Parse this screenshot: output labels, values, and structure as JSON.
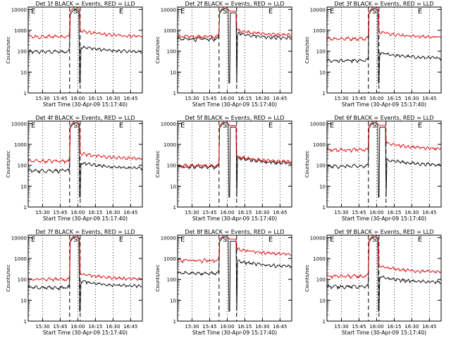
{
  "figure": {
    "ylabel": "Counts/sec",
    "xlabel": "Start Time (30-Apr-09 15:17:40)",
    "title_suffix": " BLACK = Events, RED = LLD",
    "yticks": [
      "1",
      "10",
      "100",
      "1000",
      "10000"
    ],
    "xticks": [
      "15:30",
      "15:45",
      "16:00",
      "16:15",
      "16:30",
      "16:45"
    ],
    "markers": [
      "E",
      "S",
      "E"
    ],
    "colors": {
      "events": "#000000",
      "lld": "#e00000"
    }
  },
  "chart_data": [
    {
      "type": "line",
      "title": "Det 1f BLACK = Events, RED = LLD",
      "detector": "Det 1f",
      "x_range": [
        "15:17:40",
        "16:55"
      ],
      "ylim": [
        1,
        13000
      ],
      "yscale": "log",
      "series": [
        {
          "name": "BLACK = Events",
          "baseline_pre": 95,
          "baseline_post": 90,
          "peak": 10000
        },
        {
          "name": "RED = LLD",
          "baseline_pre": 500,
          "baseline_post": 500,
          "peak": 13000
        }
      ],
      "vlines": [
        "15:53",
        "16:02"
      ],
      "dotted_gridlines": [
        "15:30",
        "15:45",
        "16:00",
        "16:15",
        "16:30",
        "16:45"
      ]
    },
    {
      "type": "line",
      "title": "Det 2f BLACK = Events, RED = LLD",
      "detector": "Det 2f",
      "x_range": [
        "15:17:40",
        "16:55"
      ],
      "ylim": [
        1,
        13000
      ],
      "yscale": "log",
      "series": [
        {
          "name": "BLACK = Events",
          "baseline_pre": 380,
          "baseline_post": 400,
          "peak": 11000
        },
        {
          "name": "RED = LLD",
          "baseline_pre": 500,
          "baseline_post": 550,
          "peak": 13000
        }
      ],
      "vlines": [
        "15:53",
        "16:08"
      ],
      "dotted_gridlines": [
        "15:30",
        "15:45",
        "16:00",
        "16:15",
        "16:30",
        "16:45"
      ]
    },
    {
      "type": "line",
      "title": "Det 3f BLACK = Events, RED = LLD",
      "detector": "Det 3f",
      "x_range": [
        "15:17:40",
        "16:55"
      ],
      "ylim": [
        1,
        13000
      ],
      "yscale": "log",
      "series": [
        {
          "name": "BLACK = Events",
          "baseline_pre": 35,
          "baseline_post": 45,
          "peak": 11000
        },
        {
          "name": "RED = LLD",
          "baseline_pre": 400,
          "baseline_post": 450,
          "peak": 13000
        }
      ],
      "vlines": [
        "15:53",
        "16:02"
      ],
      "dotted_gridlines": [
        "15:30",
        "15:45",
        "16:00",
        "16:15",
        "16:30",
        "16:45"
      ]
    },
    {
      "type": "line",
      "title": "Det 4f BLACK = Events, RED = LLD",
      "detector": "Det 4f",
      "x_range": [
        "15:17:40",
        "16:55"
      ],
      "ylim": [
        1,
        13000
      ],
      "yscale": "log",
      "series": [
        {
          "name": "BLACK = Events",
          "baseline_pre": 55,
          "baseline_post": 70,
          "peak": 11000
        },
        {
          "name": "RED = LLD",
          "baseline_pre": 160,
          "baseline_post": 200,
          "peak": 13000
        }
      ],
      "vlines": [
        "15:53",
        "16:02"
      ],
      "dotted_gridlines": [
        "15:30",
        "15:45",
        "16:00",
        "16:15",
        "16:30",
        "16:45"
      ]
    },
    {
      "type": "line",
      "title": "Det 5f BLACK = Events, RED = LLD",
      "detector": "Det 5f",
      "x_range": [
        "15:17:40",
        "16:55"
      ],
      "ylim": [
        1,
        13000
      ],
      "yscale": "log",
      "series": [
        {
          "name": "BLACK = Events",
          "baseline_pre": 85,
          "baseline_post": 120,
          "peak": 11000
        },
        {
          "name": "RED = LLD",
          "baseline_pre": 95,
          "baseline_post": 140,
          "peak": 13000
        }
      ],
      "vlines": [
        "15:53",
        "16:08"
      ],
      "dotted_gridlines": [
        "15:30",
        "15:45",
        "16:00",
        "16:15",
        "16:30",
        "16:45"
      ]
    },
    {
      "type": "line",
      "title": "Det 6f BLACK = Events, RED = LLD",
      "detector": "Det 6f",
      "x_range": [
        "15:17:40",
        "16:55"
      ],
      "ylim": [
        1,
        13000
      ],
      "yscale": "log",
      "series": [
        {
          "name": "BLACK = Events",
          "baseline_pre": 90,
          "baseline_post": 100,
          "peak": 11000
        },
        {
          "name": "RED = LLD",
          "baseline_pre": 550,
          "baseline_post": 600,
          "peak": 13000
        }
      ],
      "vlines": [
        "15:53",
        "16:08"
      ],
      "dotted_gridlines": [
        "15:30",
        "15:45",
        "16:00",
        "16:15",
        "16:30",
        "16:45"
      ]
    },
    {
      "type": "line",
      "title": "Det 7f BLACK = Events, RED = LLD",
      "detector": "Det 7f",
      "x_range": [
        "15:17:40",
        "16:55"
      ],
      "ylim": [
        1,
        13000
      ],
      "yscale": "log",
      "series": [
        {
          "name": "BLACK = Events",
          "baseline_pre": 40,
          "baseline_post": 45,
          "peak": 11000
        },
        {
          "name": "RED = LLD",
          "baseline_pre": 100,
          "baseline_post": 100,
          "peak": 13000
        }
      ],
      "vlines": [
        "15:53",
        "16:02"
      ],
      "dotted_gridlines": [
        "15:30",
        "15:45",
        "16:00",
        "16:15",
        "16:30",
        "16:45"
      ]
    },
    {
      "type": "line",
      "title": "Det 8f BLACK = Events, RED = LLD",
      "detector": "Det 8f",
      "x_range": [
        "15:17:40",
        "16:55"
      ],
      "ylim": [
        1,
        13000
      ],
      "yscale": "log",
      "series": [
        {
          "name": "BLACK = Events",
          "baseline_pre": 200,
          "baseline_post": 400,
          "peak": 11000
        },
        {
          "name": "RED = LLD",
          "baseline_pre": 800,
          "baseline_post": 1500,
          "peak": 13000
        }
      ],
      "vlines": [
        "15:53",
        "16:08"
      ],
      "dotted_gridlines": [
        "15:30",
        "15:45",
        "16:00",
        "16:15",
        "16:30",
        "16:45"
      ]
    },
    {
      "type": "line",
      "title": "Det 9f BLACK = Events, RED = LLD",
      "detector": "Det 9f",
      "x_range": [
        "15:17:40",
        "16:55"
      ],
      "ylim": [
        1,
        13000
      ],
      "yscale": "log",
      "series": [
        {
          "name": "BLACK = Events",
          "baseline_pre": 45,
          "baseline_post": 70,
          "peak": 11000
        },
        {
          "name": "RED = LLD",
          "baseline_pre": 140,
          "baseline_post": 220,
          "peak": 13000
        }
      ],
      "vlines": [
        "15:53",
        "16:02"
      ],
      "dotted_gridlines": [
        "15:30",
        "15:45",
        "16:00",
        "16:15",
        "16:30",
        "16:45"
      ]
    }
  ]
}
